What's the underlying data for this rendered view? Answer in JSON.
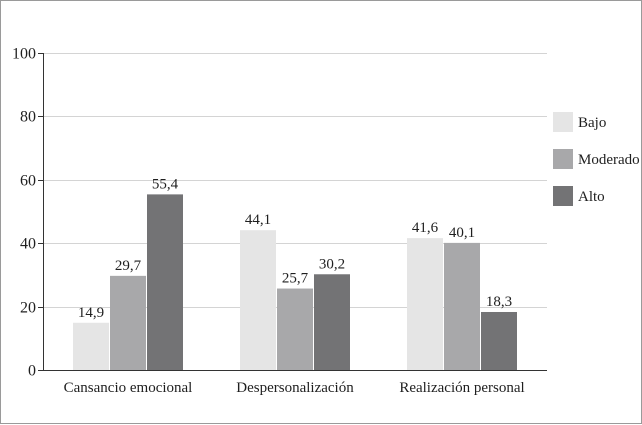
{
  "chart_data": {
    "type": "bar",
    "title": "",
    "xlabel": "",
    "ylabel": "",
    "ylim": [
      0,
      100
    ],
    "yticks": [
      0,
      20,
      40,
      60,
      80,
      100
    ],
    "grid": true,
    "legend_position": "right",
    "categories": [
      "Cansancio emocional",
      "Despersonalización",
      "Realización personal"
    ],
    "series": [
      {
        "name": "Bajo",
        "color": "#e5e5e5",
        "values": [
          14.9,
          44.1,
          41.6
        ],
        "labels": [
          "14,9",
          "44,1",
          "41,6"
        ]
      },
      {
        "name": "Moderado",
        "color": "#a8a8aa",
        "values": [
          29.7,
          25.7,
          40.1
        ],
        "labels": [
          "29,7",
          "25,7",
          "40,1"
        ]
      },
      {
        "name": "Alto",
        "color": "#737375",
        "values": [
          55.4,
          30.2,
          18.3
        ],
        "labels": [
          "55,4",
          "30,2",
          "18,3"
        ]
      }
    ]
  }
}
